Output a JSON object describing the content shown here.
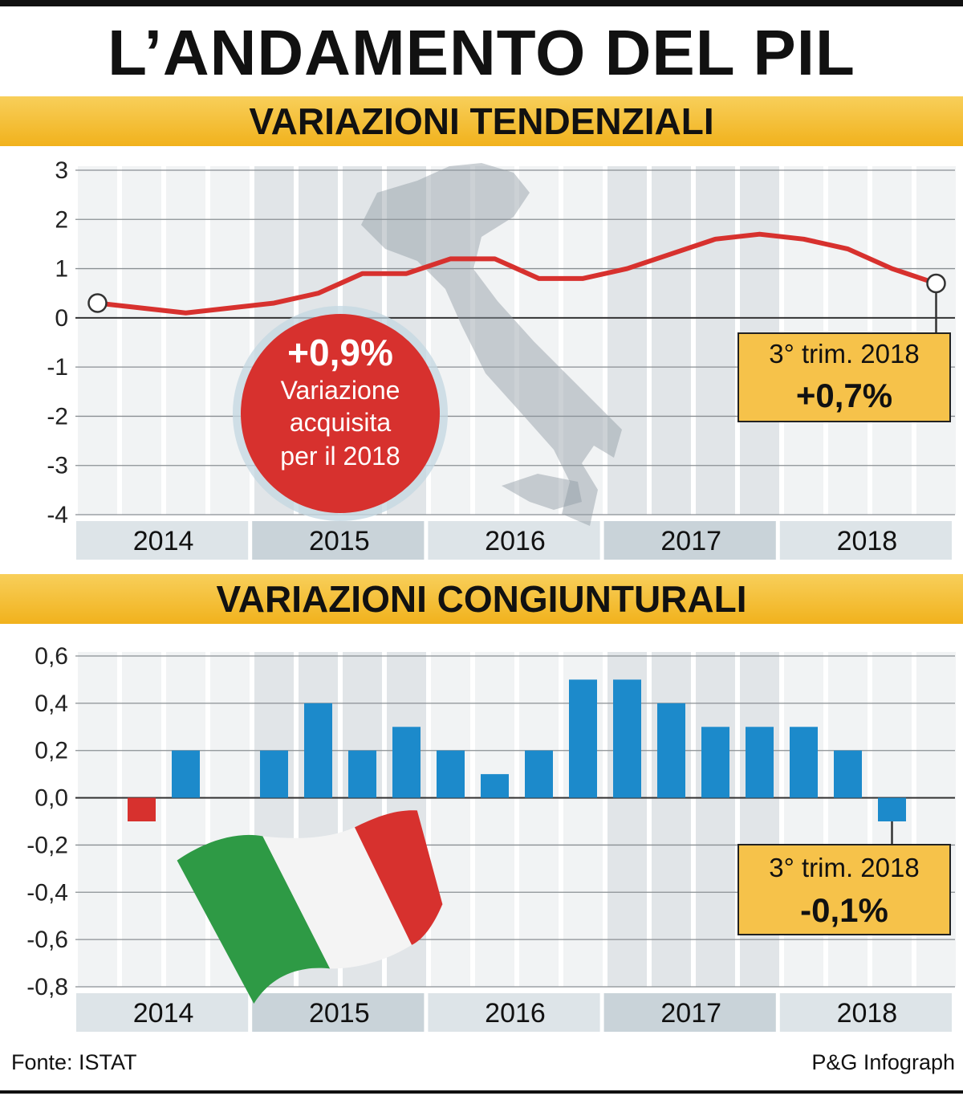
{
  "title": "L’ANDAMENTO DEL PIL",
  "source": "Fonte: ISTAT",
  "credit": "P&G Infograph",
  "colors": {
    "band": "#f1b21d",
    "line": "#d7312e",
    "bar_positive": "#1c8acb",
    "bar_negative": "#d7312e",
    "callout_bg": "#f6c24a"
  },
  "chart_data": [
    {
      "type": "line",
      "title": "VARIAZIONI TENDENZIALI",
      "years": [
        "2014",
        "2015",
        "2016",
        "2017",
        "2018"
      ],
      "quarters_per_year": 4,
      "ylim": [
        -4,
        3
      ],
      "yticks": [
        "3",
        "2",
        "1",
        "0",
        "-1",
        "-2",
        "-3",
        "-4"
      ],
      "series": [
        {
          "values": [
            0.3,
            0.2,
            0.1,
            0.2,
            0.3,
            0.5,
            0.9,
            0.9,
            1.2,
            1.2,
            0.8,
            0.8,
            1.0,
            1.3,
            1.6,
            1.7,
            1.6,
            1.4,
            1.0,
            0.7
          ]
        }
      ],
      "bubble": {
        "value": "+0,9%",
        "line1": "Variazione",
        "line2": "acquisita",
        "line3": "per il 2018"
      },
      "callout": {
        "label": "3° trim. 2018",
        "value": "+0,7%"
      }
    },
    {
      "type": "bar",
      "title": "VARIAZIONI CONGIUNTURALI",
      "years": [
        "2014",
        "2015",
        "2016",
        "2017",
        "2018"
      ],
      "quarters_per_year": 4,
      "ylim": [
        -0.8,
        0.6
      ],
      "yticks": [
        "0,6",
        "0,4",
        "0,2",
        "0,0",
        "-0,2",
        "-0,4",
        "-0,6",
        "-0,8"
      ],
      "values": [
        -0.1,
        0.2,
        0.0,
        0.2,
        0.4,
        0.2,
        0.3,
        0.2,
        0.1,
        0.2,
        0.5,
        0.5,
        0.4,
        0.3,
        0.3,
        0.3,
        0.2,
        -0.1
      ],
      "callout": {
        "label": "3° trim. 2018",
        "value": "-0,1%"
      }
    }
  ]
}
